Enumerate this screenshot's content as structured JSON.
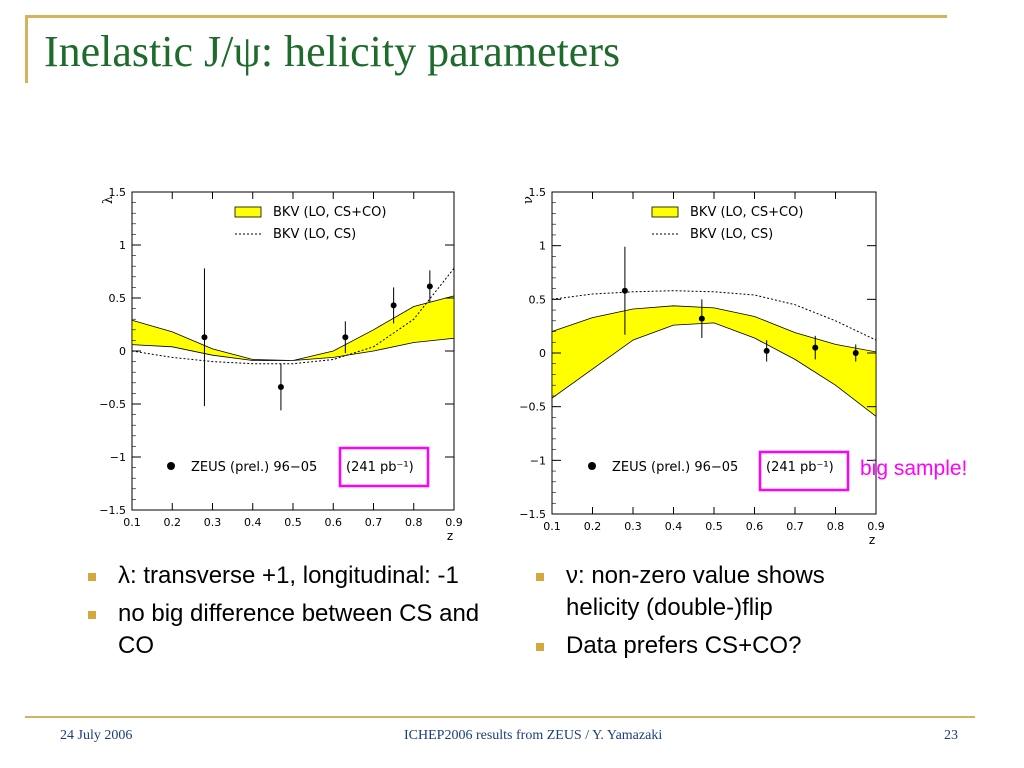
{
  "slide": {
    "title": "Inelastic J/ψ: helicity parameters",
    "note": "big sample!",
    "footer": {
      "date": "24 July 2006",
      "center": "ICHEP2006 results from ZEUS / Y. Yamazaki",
      "page": "23"
    }
  },
  "bullets_left": [
    {
      "text": "λ: transverse +1, longitudinal: -1"
    },
    {
      "text": "no big difference between CS and CO"
    }
  ],
  "bullets_right": [
    {
      "text": "ν: non-zero value shows helicity (double-)flip"
    },
    {
      "text": "Data prefers CS+CO?"
    }
  ],
  "colors": {
    "title": "#1e6b2c",
    "band": "#ffff00",
    "highlight_box": "#ff00ff",
    "accent": "#d7b25e",
    "note": "#ff00ff"
  },
  "chart_data": [
    {
      "type": "line",
      "ylabel": "λ",
      "xlabel": "z",
      "xlim": [
        0.1,
        0.9
      ],
      "ylim": [
        -1.5,
        1.5
      ],
      "xticks": [
        "0.1",
        "0.2",
        "0.3",
        "0.4",
        "0.5",
        "0.6",
        "0.7",
        "0.8",
        "0.9"
      ],
      "yticks": [
        "1.5",
        "1",
        "0.5",
        "0",
        "−0.5",
        "−1",
        "−1.5"
      ],
      "legend": [
        "BKV (LO, CS+CO)",
        "BKV (LO, CS)"
      ],
      "data_legend": "ZEUS (prel.) 96−05",
      "data_legend_lumi": "(241 pb⁻¹)",
      "band": {
        "name": "BKV (LO, CS+CO)",
        "x": [
          0.1,
          0.2,
          0.3,
          0.4,
          0.5,
          0.6,
          0.7,
          0.8,
          0.9
        ],
        "upper": [
          0.29,
          0.18,
          0.02,
          -0.08,
          -0.09,
          0.0,
          0.2,
          0.42,
          0.52
        ],
        "lower": [
          0.06,
          0.04,
          -0.04,
          -0.09,
          -0.09,
          -0.06,
          0.0,
          0.08,
          0.12
        ]
      },
      "curve": {
        "name": "BKV (LO, CS)",
        "x": [
          0.1,
          0.2,
          0.3,
          0.4,
          0.5,
          0.6,
          0.7,
          0.8,
          0.9
        ],
        "y": [
          0.0,
          -0.06,
          -0.1,
          -0.12,
          -0.12,
          -0.08,
          0.04,
          0.3,
          0.78
        ]
      },
      "points": [
        {
          "x": 0.28,
          "y": 0.13,
          "err": 0.65
        },
        {
          "x": 0.47,
          "y": -0.34,
          "err": 0.22
        },
        {
          "x": 0.63,
          "y": 0.13,
          "err": 0.15
        },
        {
          "x": 0.75,
          "y": 0.43,
          "err": 0.17
        },
        {
          "x": 0.84,
          "y": 0.61,
          "err": 0.15
        }
      ]
    },
    {
      "type": "line",
      "ylabel": "ν",
      "xlabel": "z",
      "xlim": [
        0.1,
        0.9
      ],
      "ylim": [
        -1.5,
        1.5
      ],
      "xticks": [
        "0.1",
        "0.2",
        "0.3",
        "0.4",
        "0.5",
        "0.6",
        "0.7",
        "0.8",
        "0.9"
      ],
      "yticks": [
        "1.5",
        "1",
        "0.5",
        "0",
        "−0.5",
        "−1",
        "−1.5"
      ],
      "legend": [
        "BKV (LO, CS+CO)",
        "BKV (LO, CS)"
      ],
      "data_legend": "ZEUS (prel.) 96−05",
      "data_legend_lumi": "(241 pb⁻¹)",
      "band": {
        "name": "BKV (LO, CS+CO)",
        "x": [
          0.1,
          0.2,
          0.3,
          0.4,
          0.5,
          0.6,
          0.7,
          0.8,
          0.9
        ],
        "upper": [
          0.2,
          0.33,
          0.41,
          0.44,
          0.42,
          0.34,
          0.19,
          0.08,
          0.01
        ],
        "lower": [
          -0.42,
          -0.15,
          0.12,
          0.26,
          0.28,
          0.14,
          -0.06,
          -0.3,
          -0.59
        ]
      },
      "curve": {
        "name": "BKV (LO, CS)",
        "x": [
          0.1,
          0.2,
          0.3,
          0.4,
          0.5,
          0.6,
          0.7,
          0.8,
          0.9
        ],
        "y": [
          0.5,
          0.55,
          0.57,
          0.58,
          0.57,
          0.54,
          0.45,
          0.3,
          0.12
        ]
      },
      "points": [
        {
          "x": 0.28,
          "y": 0.58,
          "err": 0.41
        },
        {
          "x": 0.47,
          "y": 0.32,
          "err": 0.18
        },
        {
          "x": 0.63,
          "y": 0.02,
          "err": 0.1
        },
        {
          "x": 0.75,
          "y": 0.05,
          "err": 0.11
        },
        {
          "x": 0.85,
          "y": 0.0,
          "err": 0.08
        }
      ]
    }
  ]
}
